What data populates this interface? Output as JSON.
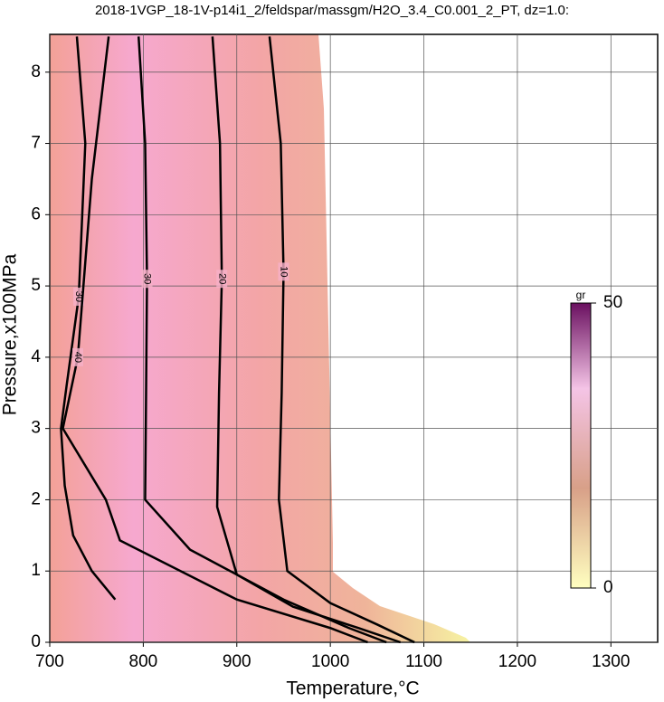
{
  "chart_data": {
    "type": "contour",
    "title": "2018-1VGP_18-1V-p14i1_2/feldspar/massgm/H2O_3.4_C0.001_2_PT, dz=1.0:",
    "x_label": "Temperature,°C",
    "y_label": "Pressure,x100MPa",
    "xlim": [
      700,
      1350
    ],
    "xticks": [
      700,
      800,
      900,
      1000,
      1100,
      1200,
      1300
    ],
    "ylim": [
      0,
      8.53
    ],
    "yticks": [
      0,
      1,
      2,
      3,
      4,
      5,
      6,
      7,
      8
    ],
    "grid": true,
    "contours": [
      {
        "level": 10,
        "x": [
          935,
          947,
          950,
          948,
          945,
          954,
          1000,
          1050,
          1090
        ],
        "y": [
          8.5,
          7,
          5.2,
          3.5,
          2.0,
          1.0,
          0.55,
          0.25,
          0.0
        ]
      },
      {
        "level": 20,
        "x": [
          874,
          882,
          884,
          881,
          879,
          900,
          960,
          1030,
          1075
        ],
        "y": [
          8.5,
          7,
          5.1,
          3.5,
          1.9,
          0.95,
          0.5,
          0.2,
          0.0
        ]
      },
      {
        "level": 30,
        "x": [
          795,
          802,
          804,
          803,
          802,
          850,
          950,
          1020,
          1060
        ],
        "y": [
          8.5,
          7,
          5.1,
          3.5,
          2.0,
          1.3,
          0.6,
          0.2,
          0.0
        ]
      },
      {
        "level": 30,
        "x": [
          729,
          738,
          731,
          718,
          712,
          716,
          725,
          745,
          770
        ],
        "y": [
          8.5,
          7,
          4.85,
          3.6,
          3.0,
          2.2,
          1.5,
          1.0,
          0.6
        ]
      },
      {
        "level": 40,
        "x": [
          763,
          745,
          730,
          714,
          760,
          775,
          900,
          1000,
          1040
        ],
        "y": [
          8.5,
          6.5,
          4.0,
          3.0,
          2.0,
          1.43,
          0.6,
          0.2,
          0.0
        ]
      }
    ],
    "colorbar": {
      "label": "gr",
      "lim": [
        0,
        50
      ],
      "ticks": [
        0,
        50
      ]
    }
  }
}
